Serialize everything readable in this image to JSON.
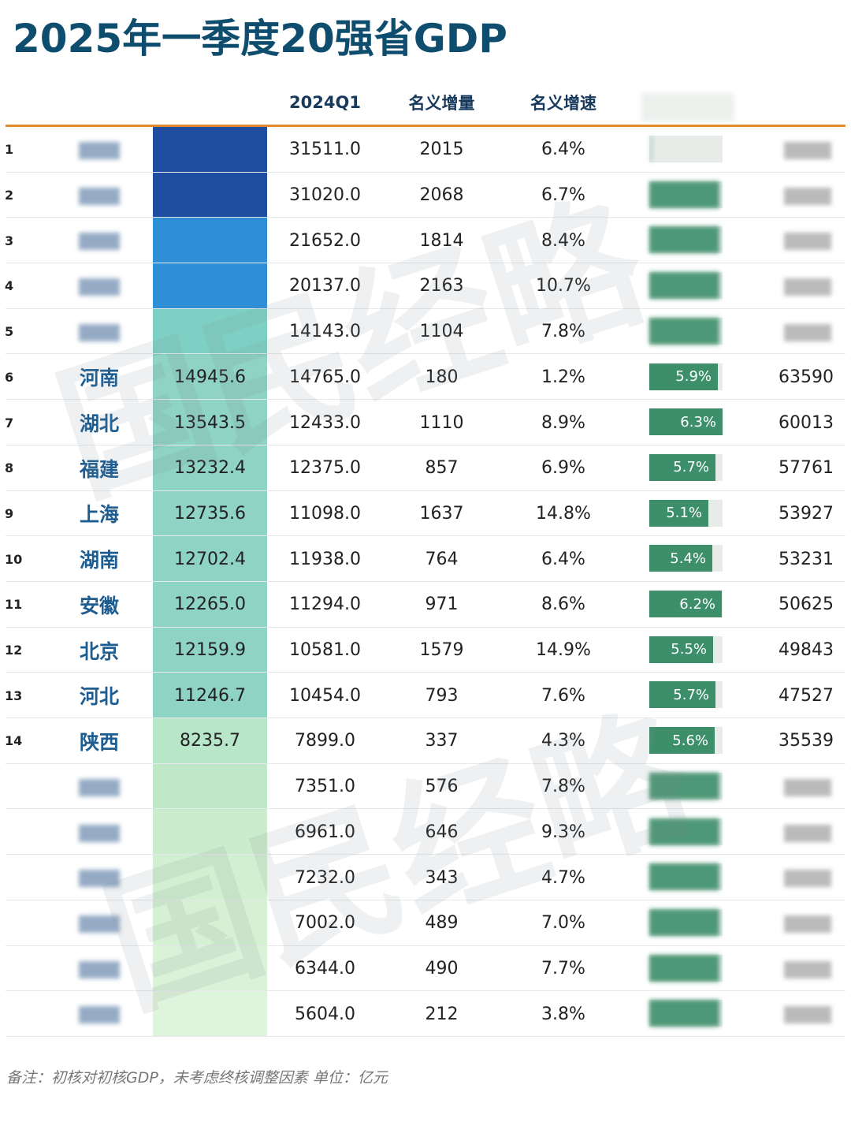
{
  "title": "2025年一季度20强省GDP",
  "headers": {
    "q1_2024": "2024Q1",
    "increase": "名义增量",
    "rate": "名义增速"
  },
  "watermark": "国民经略",
  "note": "备注：初核对初核GDP，未考虑终核调整因素 单位：亿元",
  "colors": {
    "title": "#0f4d6e",
    "orange_line": "#e58a2b",
    "bar": "#3d8f6a",
    "province": "#1e5d91"
  },
  "gdp_column_colors": [
    "#1f4ea0",
    "#1f4ea0",
    "#2e8fd6",
    "#2e8fd6",
    "#7fd0c4",
    "#8fd3c4",
    "#8fd3c4",
    "#8fd3c4",
    "#8fd3c4",
    "#8fd3c4",
    "#8fd3c4",
    "#8fd3c4",
    "#8fd3c4",
    "#b7e6c9",
    "#bfe8c8",
    "#cbeccd",
    "#d2efd2",
    "#d6f0d4",
    "#daf2d8",
    "#dff4dc"
  ],
  "chart_data": {
    "type": "table",
    "title": "2025年一季度20强省GDP",
    "columns": [
      "",
      "",
      "",
      "2024Q1",
      "名义增量",
      "名义增速",
      "",
      ""
    ],
    "rows": [
      {
        "rank": "1",
        "province": "",
        "gdp": "",
        "q1_2024": "31511.0",
        "increase": "2015",
        "rate": "6.4%",
        "real_growth": "",
        "real_growth_value": null,
        "per_capita": "",
        "blurred": true
      },
      {
        "rank": "2",
        "province": "",
        "gdp": "",
        "q1_2024": "31020.0",
        "increase": "2068",
        "rate": "6.7%",
        "real_growth": "",
        "real_growth_value": null,
        "per_capita": "",
        "blurred": true
      },
      {
        "rank": "3",
        "province": "",
        "gdp": "",
        "q1_2024": "21652.0",
        "increase": "1814",
        "rate": "8.4%",
        "real_growth": "",
        "real_growth_value": null,
        "per_capita": "",
        "blurred": true
      },
      {
        "rank": "4",
        "province": "",
        "gdp": "",
        "q1_2024": "20137.0",
        "increase": "2163",
        "rate": "10.7%",
        "real_growth": "",
        "real_growth_value": null,
        "per_capita": "",
        "blurred": true
      },
      {
        "rank": "5",
        "province": "",
        "gdp": "",
        "q1_2024": "14143.0",
        "increase": "1104",
        "rate": "7.8%",
        "real_growth": "",
        "real_growth_value": null,
        "per_capita": "",
        "blurred": true
      },
      {
        "rank": "6",
        "province": "河南",
        "gdp": "14945.6",
        "q1_2024": "14765.0",
        "increase": "180",
        "rate": "1.2%",
        "real_growth": "5.9%",
        "real_growth_value": 5.9,
        "per_capita": "63590",
        "blurred": false
      },
      {
        "rank": "7",
        "province": "湖北",
        "gdp": "13543.5",
        "q1_2024": "12433.0",
        "increase": "1110",
        "rate": "8.9%",
        "real_growth": "6.3%",
        "real_growth_value": 6.3,
        "per_capita": "60013",
        "blurred": false
      },
      {
        "rank": "8",
        "province": "福建",
        "gdp": "13232.4",
        "q1_2024": "12375.0",
        "increase": "857",
        "rate": "6.9%",
        "real_growth": "5.7%",
        "real_growth_value": 5.7,
        "per_capita": "57761",
        "blurred": false
      },
      {
        "rank": "9",
        "province": "上海",
        "gdp": "12735.6",
        "q1_2024": "11098.0",
        "increase": "1637",
        "rate": "14.8%",
        "real_growth": "5.1%",
        "real_growth_value": 5.1,
        "per_capita": "53927",
        "blurred": false
      },
      {
        "rank": "10",
        "province": "湖南",
        "gdp": "12702.4",
        "q1_2024": "11938.0",
        "increase": "764",
        "rate": "6.4%",
        "real_growth": "5.4%",
        "real_growth_value": 5.4,
        "per_capita": "53231",
        "blurred": false
      },
      {
        "rank": "11",
        "province": "安徽",
        "gdp": "12265.0",
        "q1_2024": "11294.0",
        "increase": "971",
        "rate": "8.6%",
        "real_growth": "6.2%",
        "real_growth_value": 6.2,
        "per_capita": "50625",
        "blurred": false
      },
      {
        "rank": "12",
        "province": "北京",
        "gdp": "12159.9",
        "q1_2024": "10581.0",
        "increase": "1579",
        "rate": "14.9%",
        "real_growth": "5.5%",
        "real_growth_value": 5.5,
        "per_capita": "49843",
        "blurred": false
      },
      {
        "rank": "13",
        "province": "河北",
        "gdp": "11246.7",
        "q1_2024": "10454.0",
        "increase": "793",
        "rate": "7.6%",
        "real_growth": "5.7%",
        "real_growth_value": 5.7,
        "per_capita": "47527",
        "blurred": false
      },
      {
        "rank": "14",
        "province": "陕西",
        "gdp": "8235.7",
        "q1_2024": "7899.0",
        "increase": "337",
        "rate": "4.3%",
        "real_growth": "5.6%",
        "real_growth_value": 5.6,
        "per_capita": "35539",
        "blurred": false
      },
      {
        "rank": "",
        "province": "",
        "gdp": "",
        "q1_2024": "7351.0",
        "increase": "576",
        "rate": "7.8%",
        "real_growth": "",
        "real_growth_value": null,
        "per_capita": "",
        "blurred": true
      },
      {
        "rank": "",
        "province": "",
        "gdp": "",
        "q1_2024": "6961.0",
        "increase": "646",
        "rate": "9.3%",
        "real_growth": "",
        "real_growth_value": null,
        "per_capita": "",
        "blurred": true
      },
      {
        "rank": "",
        "province": "",
        "gdp": "",
        "q1_2024": "7232.0",
        "increase": "343",
        "rate": "4.7%",
        "real_growth": "",
        "real_growth_value": null,
        "per_capita": "",
        "blurred": true
      },
      {
        "rank": "",
        "province": "",
        "gdp": "",
        "q1_2024": "7002.0",
        "increase": "489",
        "rate": "7.0%",
        "real_growth": "",
        "real_growth_value": null,
        "per_capita": "",
        "blurred": true
      },
      {
        "rank": "",
        "province": "",
        "gdp": "",
        "q1_2024": "6344.0",
        "increase": "490",
        "rate": "7.7%",
        "real_growth": "",
        "real_growth_value": null,
        "per_capita": "",
        "blurred": true
      },
      {
        "rank": "",
        "province": "",
        "gdp": "",
        "q1_2024": "5604.0",
        "increase": "212",
        "rate": "3.8%",
        "real_growth": "",
        "real_growth_value": null,
        "per_capita": "",
        "blurred": true
      }
    ],
    "real_growth_scale_max": 6.3
  }
}
